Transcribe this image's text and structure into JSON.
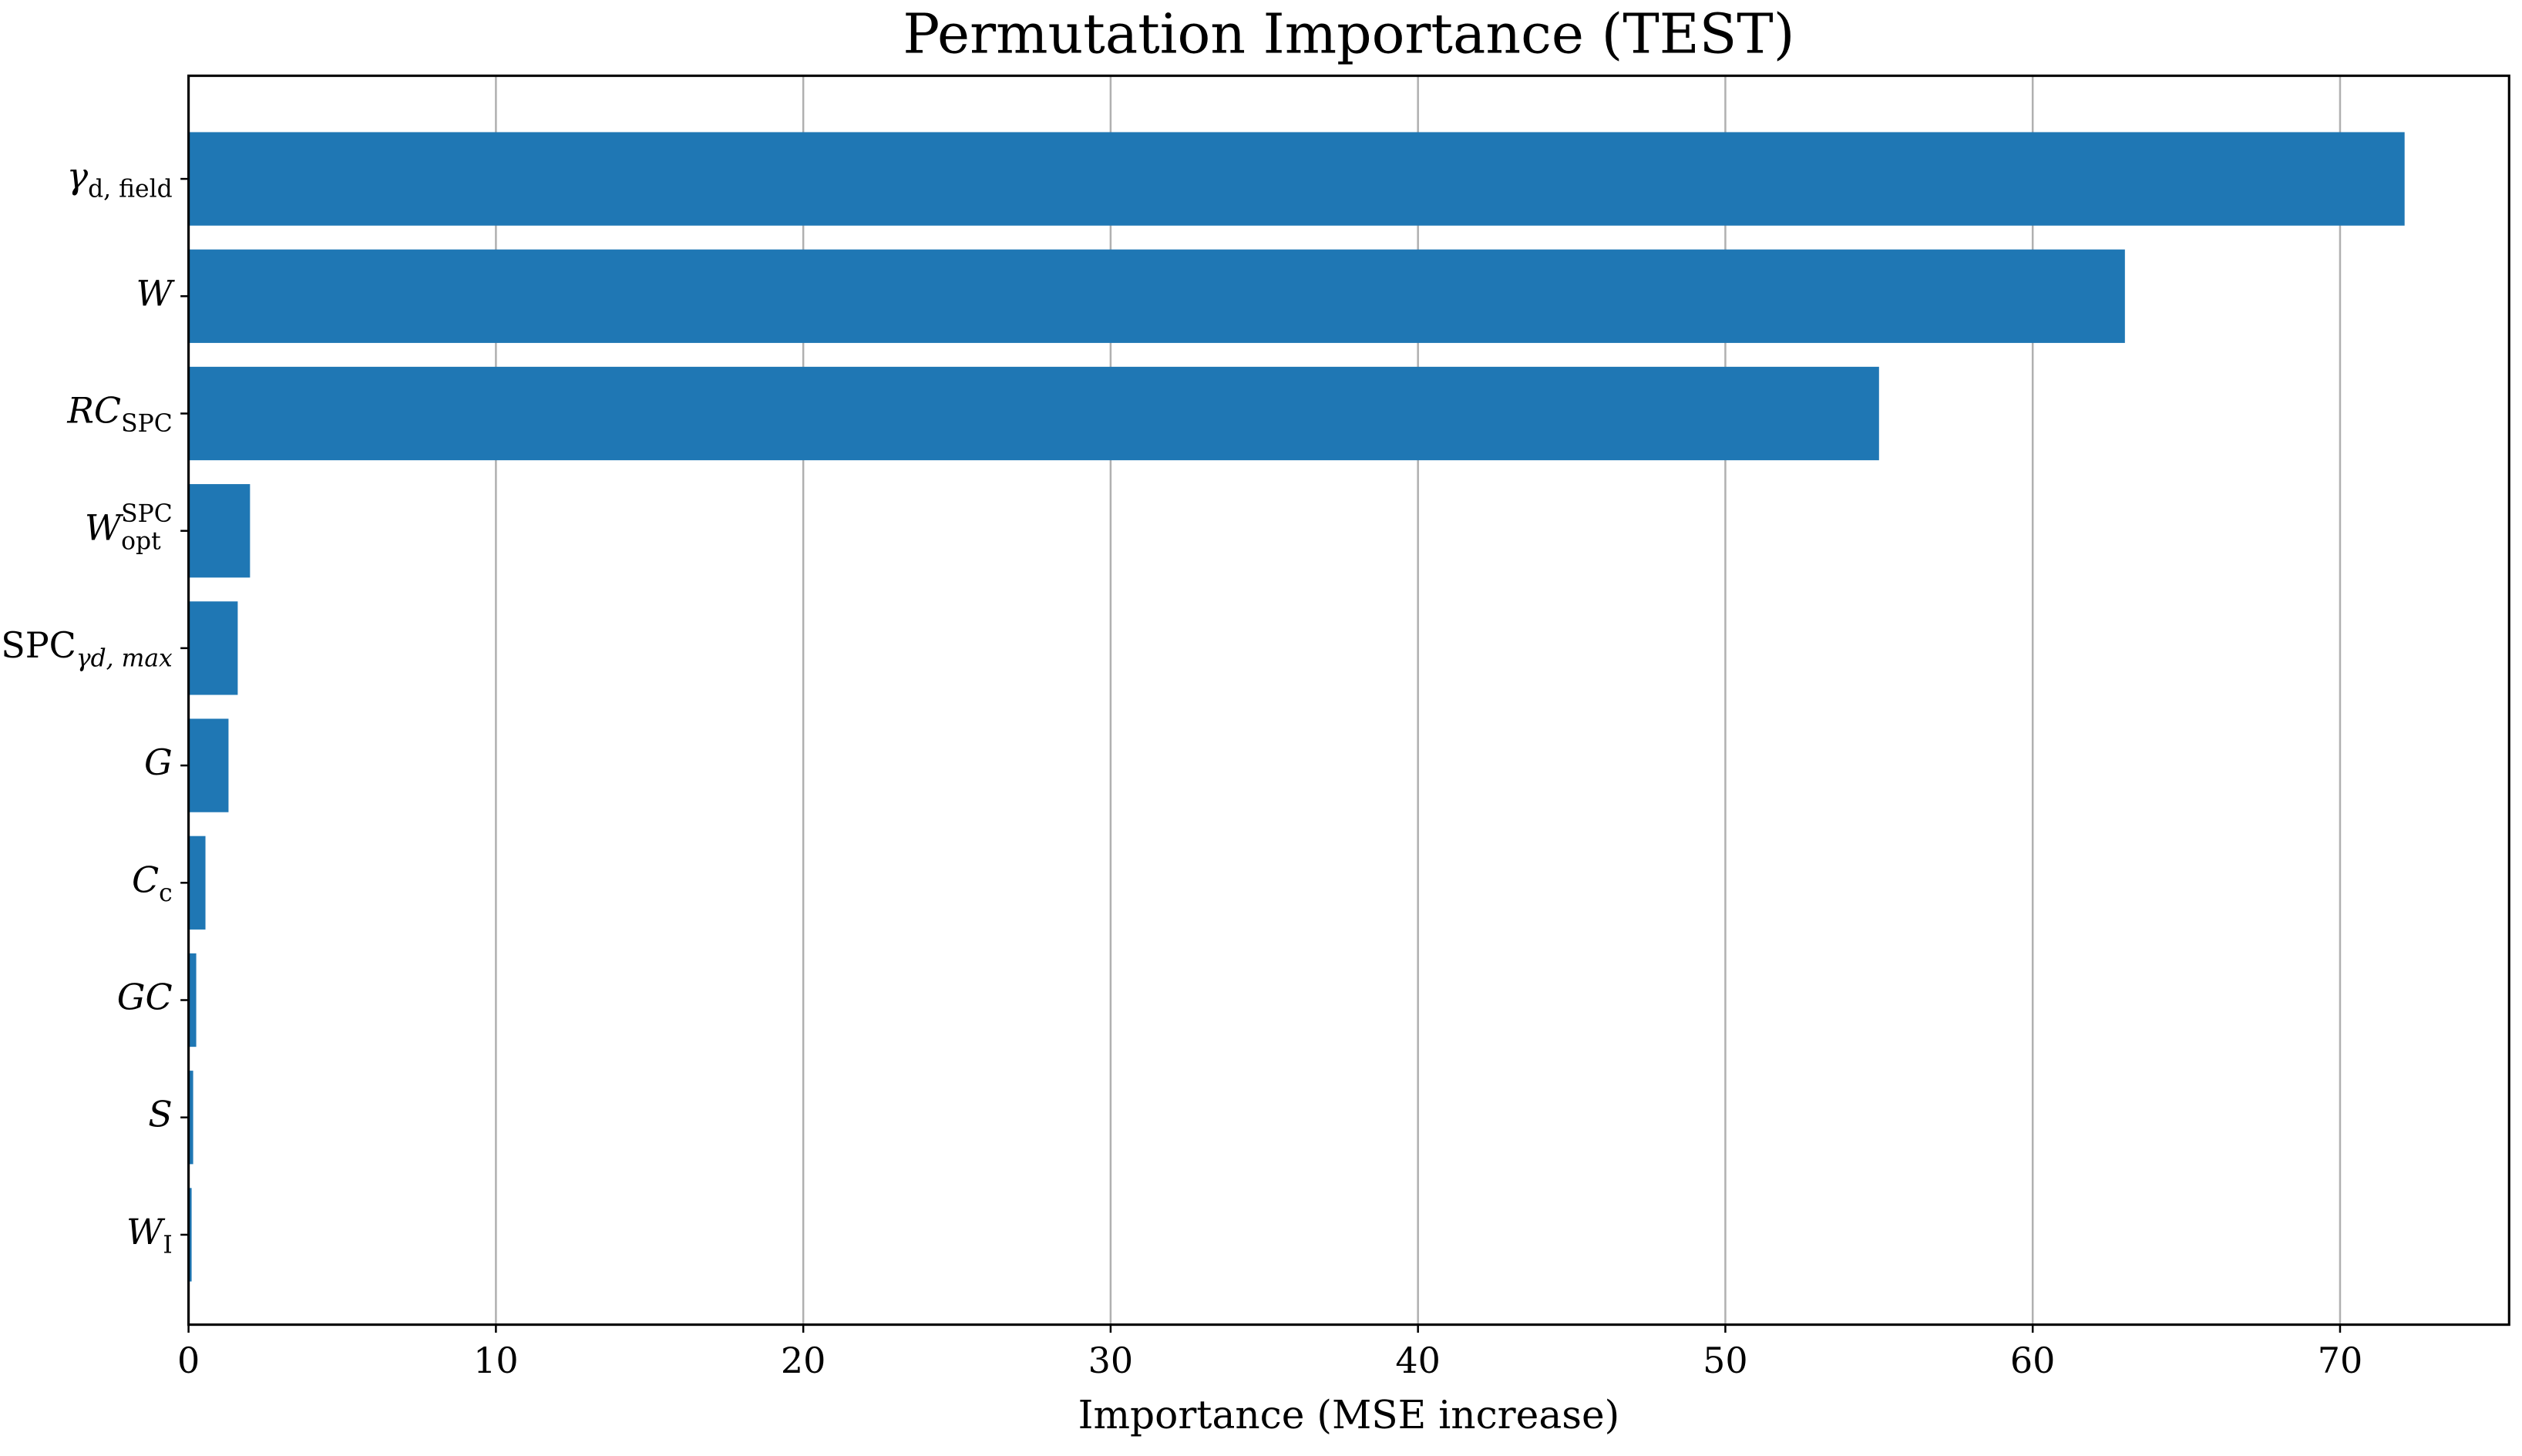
{
  "chart_data": {
    "type": "barh",
    "title": "Permutation Importance (TEST)",
    "x_label": "Importance (MSE increase)",
    "categories": [
      {
        "text": "γ",
        "italic": true,
        "sub": "d, field"
      },
      {
        "text": "W",
        "italic": true
      },
      {
        "text": "RC",
        "italic": true,
        "sub": "SPC"
      },
      {
        "text": "W",
        "italic": true,
        "sub": "opt",
        "sup": "SPC"
      },
      {
        "text": "SPC",
        "italic": false,
        "sub": "γd, max"
      },
      {
        "text": "G",
        "italic": true
      },
      {
        "text": "C",
        "italic": true,
        "sub": "c"
      },
      {
        "text": "GC",
        "italic": true
      },
      {
        "text": "S",
        "italic": true
      },
      {
        "text": "W",
        "italic": true,
        "sub": "I"
      }
    ],
    "values": [
      72.1,
      63.0,
      55.0,
      2.0,
      1.6,
      1.3,
      0.55,
      0.25,
      0.15,
      0.1
    ],
    "color": "#1f77b4",
    "xlim": [
      0,
      75.5
    ],
    "xticks": [
      0,
      10,
      20,
      30,
      40,
      50,
      60,
      70
    ],
    "grid": true
  }
}
